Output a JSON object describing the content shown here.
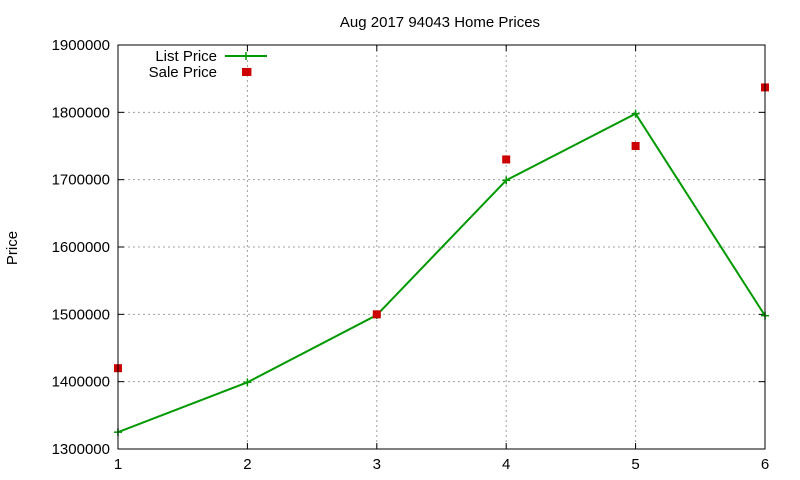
{
  "chart_data": {
    "type": "line",
    "title": "Aug 2017 94043 Home Prices",
    "xlabel": "",
    "ylabel": "Price",
    "x": [
      1,
      2,
      3,
      4,
      5,
      6
    ],
    "xlim": [
      1,
      6
    ],
    "ylim": [
      1300000,
      1900000
    ],
    "xticks": [
      "1",
      "2",
      "3",
      "4",
      "5",
      "6"
    ],
    "yticks": [
      "1300000",
      "1400000",
      "1500000",
      "1600000",
      "1700000",
      "1800000",
      "1900000"
    ],
    "grid": true,
    "legend_position": "top-left",
    "series": [
      {
        "name": "List Price",
        "style": "linespoints",
        "marker": "plus",
        "color": "#009900",
        "values": [
          1325000,
          1399000,
          1499000,
          1699000,
          1798000,
          1498000
        ]
      },
      {
        "name": "Sale Price",
        "style": "points",
        "marker": "square",
        "color": "#cc0000",
        "values": [
          1420000,
          1860000,
          1500000,
          1730000,
          1750000,
          1837000
        ]
      }
    ]
  }
}
